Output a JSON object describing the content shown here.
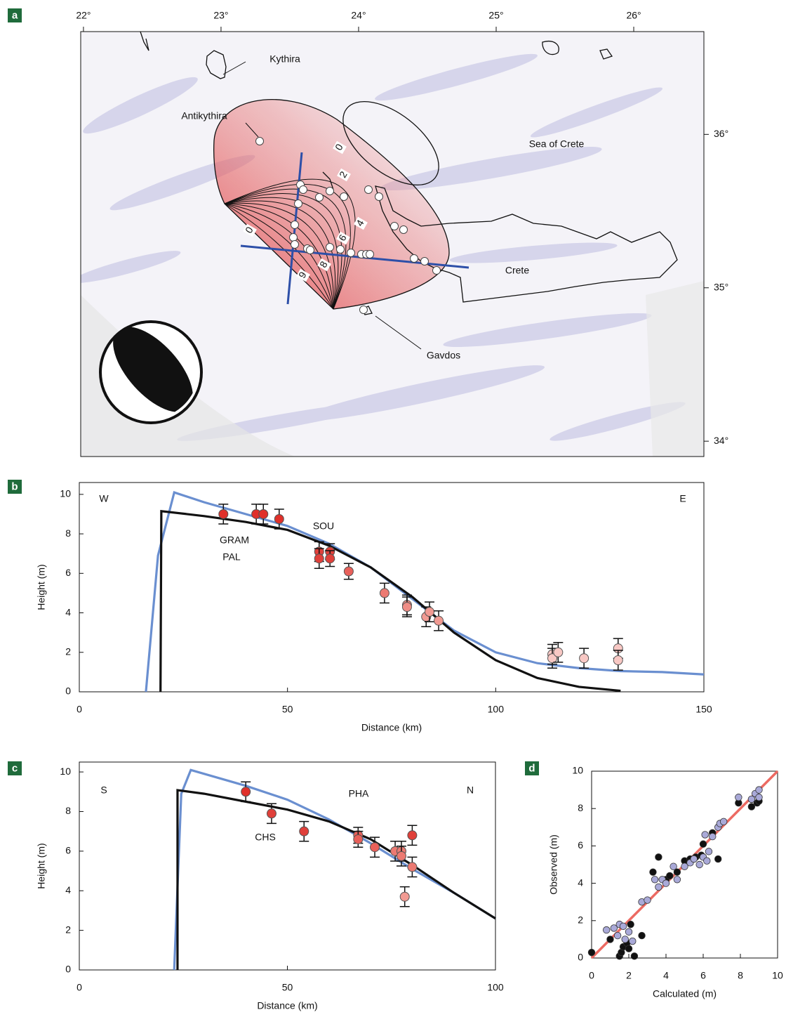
{
  "chart_data": [
    {
      "panel": "a",
      "type": "map",
      "xlim": [
        21.98,
        26.51
      ],
      "xticks": [
        {
          "value": 22,
          "label": "22°"
        },
        {
          "value": 23,
          "label": "23°"
        },
        {
          "value": 24,
          "label": "24°"
        },
        {
          "value": 25,
          "label": "25°"
        },
        {
          "value": 26,
          "label": "26°"
        }
      ],
      "ylim": [
        33.9,
        36.67
      ],
      "yticks": [
        {
          "value": 34,
          "label": "34°"
        },
        {
          "value": 35,
          "label": "35°"
        },
        {
          "value": 36,
          "label": "36°"
        }
      ],
      "annotations": [
        "Kythira",
        "Antikythira",
        "Sea of Crete",
        "Crete",
        "Gavdos"
      ],
      "contour_labels": [
        0,
        2,
        4,
        6,
        8,
        9,
        0
      ]
    },
    {
      "panel": "b",
      "type": "line",
      "xlabel": "Distance (km)",
      "ylabel": "Height (m)",
      "xlim": [
        0,
        150
      ],
      "xticks": [
        0,
        50,
        100,
        150
      ],
      "ylim": [
        0,
        10.6
      ],
      "yticks": [
        0,
        2,
        4,
        6,
        8,
        10
      ],
      "series": [
        {
          "color": "#6a8fd0",
          "x": [
            16,
            18.9,
            22.8,
            30,
            40,
            50,
            60,
            70,
            80,
            90,
            100,
            110,
            120,
            130,
            140,
            150
          ],
          "values": [
            0,
            6.9,
            10.1,
            9.6,
            9.0,
            8.4,
            7.5,
            6.3,
            4.7,
            3.1,
            2.0,
            1.45,
            1.2,
            1.05,
            1.0,
            0.88
          ]
        },
        {
          "color": "#111111",
          "x": [
            19.5,
            19.7,
            30,
            40,
            50,
            60,
            70,
            80,
            90,
            100,
            110,
            120,
            130
          ],
          "values": [
            0,
            9.15,
            8.9,
            8.6,
            8.2,
            7.4,
            6.3,
            4.8,
            3.0,
            1.6,
            0.7,
            0.25,
            0.05
          ]
        }
      ],
      "observations": {
        "x": [
          34.6,
          42.5,
          44.2,
          48.0,
          57.6,
          57.6,
          60.2,
          60.2,
          64.7,
          73.3,
          78.7,
          78.7,
          83.3,
          84.1,
          86.3,
          113.6,
          113.6,
          115.0,
          121.2,
          129.4,
          129.4
        ],
        "values": [
          9.0,
          9.0,
          9.0,
          8.75,
          7.1,
          6.75,
          7.1,
          6.75,
          6.1,
          5.0,
          4.4,
          4.3,
          3.8,
          4.05,
          3.6,
          1.9,
          1.7,
          2.0,
          1.7,
          2.2,
          1.6
        ],
        "errors": [
          0.5,
          0.5,
          0.5,
          0.5,
          0.5,
          0.5,
          0.4,
          0.4,
          0.4,
          0.5,
          0.5,
          0.5,
          0.5,
          0.5,
          0.5,
          0.5,
          0.5,
          0.5,
          0.5,
          0.5,
          0.5
        ],
        "colors": [
          "#e0302a",
          "#e0302a",
          "#e0302a",
          "#e0302a",
          "#e0403a",
          "#e0403a",
          "#e0403a",
          "#e0403a",
          "#e8605a",
          "#ec7a72",
          "#ef8c85",
          "#ef8c85",
          "#f19a92",
          "#f19a92",
          "#f19a92",
          "#f8c8c4",
          "#f8c8c4",
          "#f8c8c4",
          "#f8c8c4",
          "#f8c8c4",
          "#f8c8c4"
        ]
      },
      "annotations": [
        "W",
        "E",
        "GRAM",
        "PAL",
        "SOU"
      ]
    },
    {
      "panel": "c",
      "type": "line",
      "xlabel": "Distance (km)",
      "ylabel": "Height (m)",
      "xlim": [
        0,
        100
      ],
      "xticks": [
        0,
        50,
        100
      ],
      "ylim": [
        0,
        10.5
      ],
      "yticks": [
        0,
        2,
        4,
        6,
        8,
        10
      ],
      "series": [
        {
          "color": "#6a8fd0",
          "x": [
            22.8,
            24.5,
            26.8,
            40,
            50,
            60,
            70,
            80,
            90,
            100
          ],
          "values": [
            0,
            8.9,
            10.1,
            9.3,
            8.6,
            7.6,
            6.4,
            5.1,
            3.9,
            2.6
          ]
        },
        {
          "color": "#111111",
          "x": [
            23.6,
            23.6,
            30,
            40,
            50,
            60,
            70,
            80,
            90,
            100
          ],
          "values": [
            0,
            9.08,
            8.9,
            8.5,
            8.1,
            7.5,
            6.6,
            5.3,
            3.9,
            2.6
          ]
        }
      ],
      "observations": {
        "x": [
          40.0,
          46.2,
          54.0,
          67.0,
          67.0,
          71.0,
          75.9,
          77.4,
          77.4,
          80.0,
          80.0,
          78.2
        ],
        "values": [
          9.0,
          7.9,
          7.0,
          6.8,
          6.6,
          6.2,
          6.0,
          6.0,
          5.75,
          6.8,
          5.2,
          3.7
        ],
        "errors": [
          0.5,
          0.5,
          0.5,
          0.4,
          0.4,
          0.5,
          0.5,
          0.5,
          0.5,
          0.5,
          0.5,
          0.5
        ],
        "colors": [
          "#e0302a",
          "#e0403a",
          "#e0403a",
          "#e8605a",
          "#e8605a",
          "#e8605a",
          "#ec7a72",
          "#ec7a72",
          "#ec7a72",
          "#e0403a",
          "#ec7a72",
          "#f19a92"
        ]
      },
      "annotations": [
        "S",
        "N",
        "CHS",
        "PHA"
      ]
    },
    {
      "panel": "d",
      "type": "scatter",
      "xlabel": "Calculated (m)",
      "ylabel": "Observed (m)",
      "xlim": [
        0,
        10
      ],
      "xticks": [
        0,
        2,
        4,
        6,
        8,
        10
      ],
      "ylim": [
        0,
        10
      ],
      "yticks": [
        0,
        2,
        4,
        6,
        8,
        10
      ],
      "reference_line": {
        "color": "#ec6a62",
        "x": [
          0,
          10
        ],
        "values": [
          0,
          10
        ]
      },
      "series": [
        {
          "color": "#111111",
          "x": [
            0,
            1.0,
            1.5,
            1.6,
            1.7,
            1.9,
            2.0,
            2.1,
            2.3,
            2.7,
            3.3,
            3.6,
            4.0,
            4.2,
            4.6,
            5.0,
            5.3,
            5.6,
            5.9,
            6.0,
            6.5,
            6.8,
            7.9,
            8.6,
            8.9,
            9.0
          ],
          "values": [
            0.3,
            1.0,
            0.1,
            0.3,
            0.6,
            0.8,
            0.5,
            1.8,
            0.1,
            1.2,
            4.6,
            5.4,
            4.2,
            4.4,
            4.6,
            5.2,
            5.3,
            5.4,
            5.5,
            6.1,
            6.7,
            5.3,
            8.3,
            8.1,
            8.3,
            8.4
          ]
        },
        {
          "color": "#a9a9d8",
          "x": [
            0.8,
            1.2,
            1.4,
            1.5,
            1.7,
            1.8,
            2.0,
            2.2,
            2.7,
            3.0,
            3.4,
            3.6,
            3.8,
            4.0,
            4.4,
            4.6,
            5.0,
            5.3,
            5.5,
            5.8,
            6.0,
            6.1,
            6.2,
            6.3,
            6.5,
            6.8,
            6.9,
            7.1,
            7.9,
            8.6,
            8.8,
            9.0,
            9.0
          ],
          "values": [
            1.5,
            1.6,
            1.2,
            1.8,
            1.7,
            1.0,
            1.4,
            0.9,
            3.0,
            3.1,
            4.2,
            3.8,
            4.2,
            4.0,
            4.9,
            4.2,
            4.9,
            5.1,
            5.3,
            5.0,
            5.4,
            6.6,
            5.2,
            5.7,
            6.5,
            7.0,
            7.2,
            7.3,
            8.6,
            8.5,
            8.8,
            9.0,
            8.6
          ]
        }
      ]
    }
  ]
}
